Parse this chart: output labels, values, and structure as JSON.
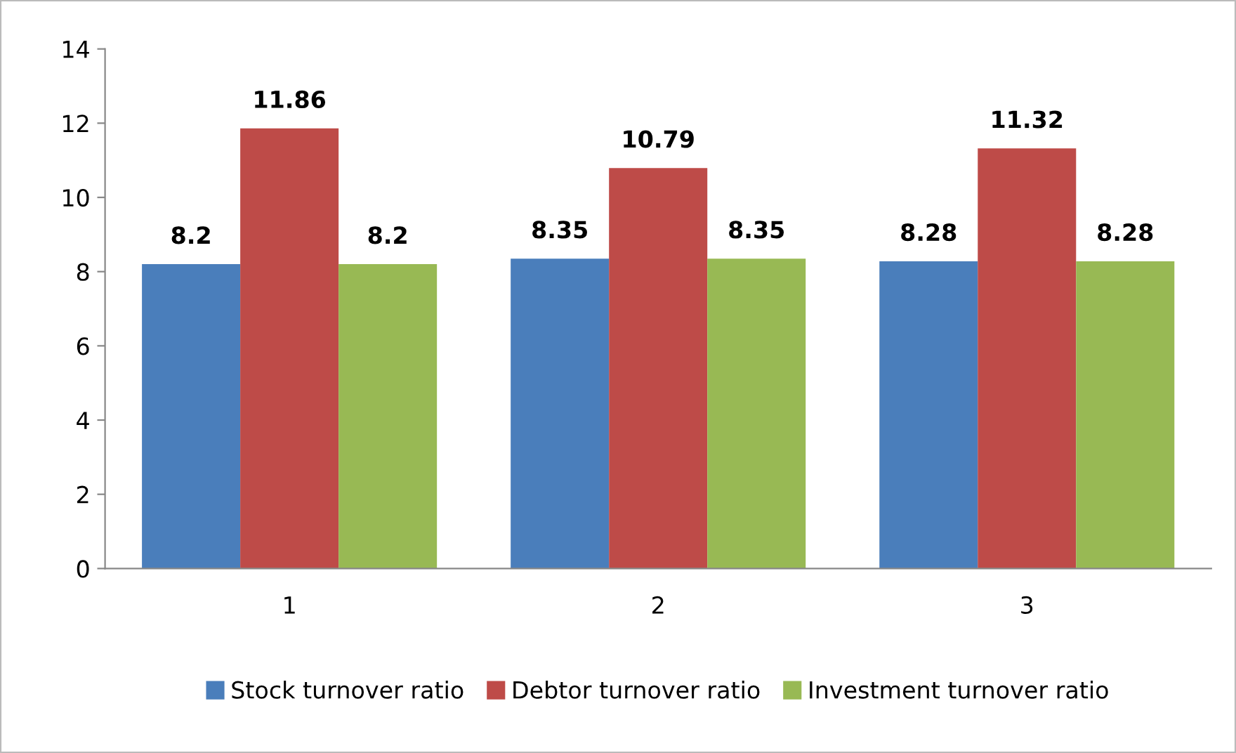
{
  "chart_data": {
    "type": "bar",
    "categories": [
      "1",
      "2",
      "3"
    ],
    "series": [
      {
        "name": "Stock turnover ratio",
        "color": "#4a7ebb",
        "values": [
          8.2,
          8.35,
          8.28
        ]
      },
      {
        "name": "Debtor turnover ratio",
        "color": "#be4b48",
        "values": [
          11.86,
          10.79,
          11.32
        ]
      },
      {
        "name": "Investment turnover ratio",
        "color": "#98b954",
        "values": [
          8.2,
          8.35,
          8.28
        ]
      }
    ],
    "ylim": [
      0,
      14
    ],
    "yticks": [
      0,
      2,
      4,
      6,
      8,
      10,
      12,
      14
    ],
    "grid": false,
    "legend": "bottom",
    "data_labels": true
  }
}
